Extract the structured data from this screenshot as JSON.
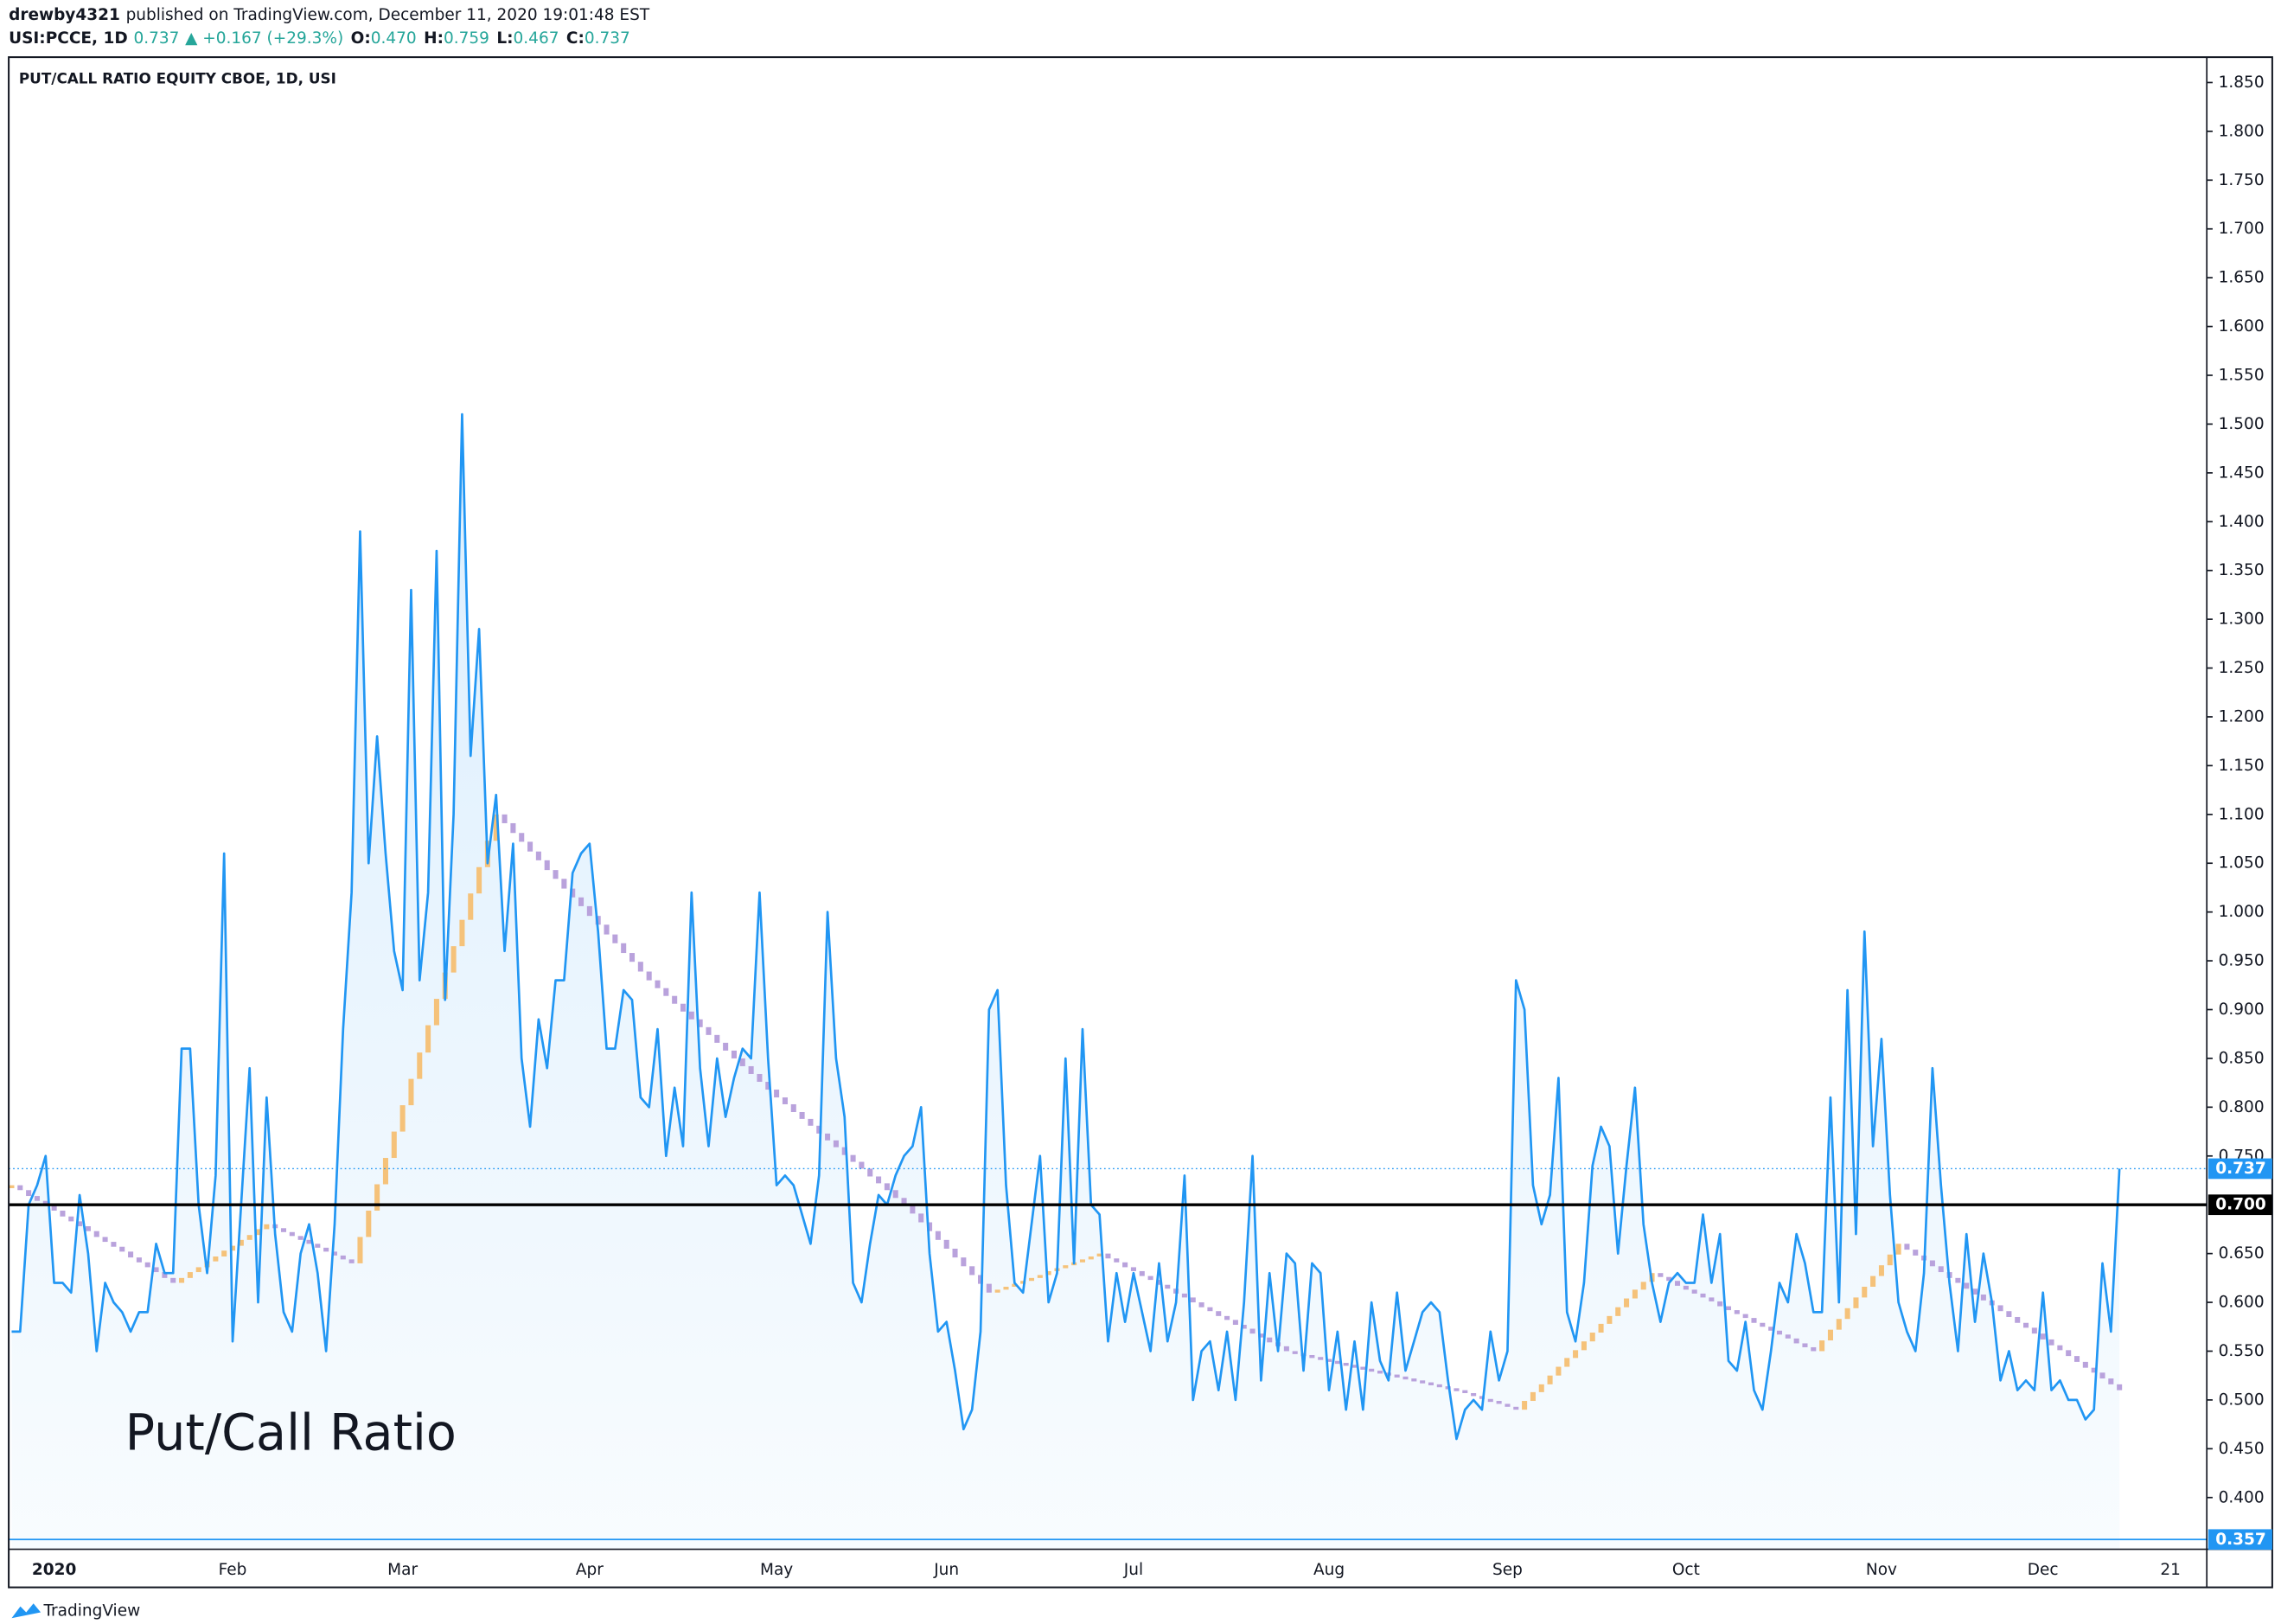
{
  "header": {
    "user": "drewby4321",
    "published": "published on TradingView.com, December 11, 2020 19:01:48 EST",
    "symbol": "USI:PCCE, 1D",
    "last": "0.737",
    "change": "▲ +0.167 (+29.3%)",
    "ohlc": [
      {
        "key": "O:",
        "value": "0.470"
      },
      {
        "key": "H:",
        "value": "0.759"
      },
      {
        "key": "L:",
        "value": "0.467"
      },
      {
        "key": "C:",
        "value": "0.737"
      }
    ]
  },
  "footer": "TradingView",
  "chart_data": {
    "type": "line",
    "title": "PUT/CALL RATIO EQUITY CBOE, 1D, USI",
    "annotation": "Put/Call Ratio",
    "categories": [
      null,
      null,
      null,
      null,
      null,
      "2020",
      null,
      null,
      null,
      null,
      null,
      null,
      null,
      null,
      null,
      null,
      null,
      null,
      null,
      null,
      null,
      null,
      null,
      null,
      null,
      null,
      "Feb",
      null,
      null,
      null,
      null,
      null,
      null,
      null,
      null,
      null,
      null,
      null,
      null,
      null,
      null,
      null,
      null,
      null,
      null,
      null,
      "Mar",
      null,
      null,
      null,
      null,
      null,
      null,
      null,
      null,
      null,
      null,
      null,
      null,
      null,
      null,
      null,
      null,
      null,
      null,
      null,
      null,
      null,
      "Apr",
      null,
      null,
      null,
      null,
      null,
      null,
      null,
      null,
      null,
      null,
      null,
      null,
      null,
      null,
      null,
      null,
      null,
      null,
      null,
      null,
      null,
      "May",
      null,
      null,
      null,
      null,
      null,
      null,
      null,
      null,
      null,
      null,
      null,
      null,
      null,
      null,
      null,
      null,
      null,
      null,
      null,
      "Jun",
      null,
      null,
      null,
      null,
      null,
      null,
      null,
      null,
      null,
      null,
      null,
      null,
      null,
      null,
      null,
      null,
      null,
      null,
      null,
      null,
      null,
      "Jul",
      null,
      null,
      null,
      null,
      null,
      null,
      null,
      null,
      null,
      null,
      null,
      null,
      null,
      null,
      null,
      null,
      null,
      null,
      null,
      null,
      null,
      null,
      "Aug",
      null,
      null,
      null,
      null,
      null,
      null,
      null,
      null,
      null,
      null,
      null,
      null,
      null,
      null,
      null,
      null,
      null,
      null,
      null,
      null,
      "Sep",
      null,
      null,
      null,
      null,
      null,
      null,
      null,
      null,
      null,
      null,
      null,
      null,
      null,
      null,
      null,
      null,
      null,
      null,
      null,
      null,
      "Oct",
      null,
      null,
      null,
      null,
      null,
      null,
      null,
      null,
      null,
      null,
      null,
      null,
      null,
      null,
      null,
      null,
      null,
      null,
      null,
      null,
      null,
      null,
      "Nov",
      null,
      null,
      null,
      null,
      null,
      null,
      null,
      null,
      null,
      null,
      null,
      null,
      null,
      null,
      null,
      null,
      null,
      null,
      "Dec",
      null,
      null,
      null,
      null,
      null,
      null,
      null,
      null,
      null,
      null,
      null,
      null,
      null,
      null,
      "21"
    ],
    "series": [
      {
        "color": "#2196f3",
        "fill": true,
        "values": [
          0.57,
          0.57,
          0.7,
          0.72,
          0.75,
          0.62,
          0.62,
          0.61,
          0.71,
          0.65,
          0.55,
          0.62,
          0.6,
          0.59,
          0.57,
          0.59,
          0.59,
          0.66,
          0.63,
          0.63,
          0.86,
          0.86,
          0.7,
          0.63,
          0.73,
          1.06,
          0.56,
          0.7,
          0.84,
          0.6,
          0.81,
          0.67,
          0.59,
          0.57,
          0.65,
          0.68,
          0.63,
          0.55,
          0.68,
          0.88,
          1.02,
          1.39,
          1.05,
          1.18,
          1.06,
          0.96,
          0.92,
          1.33,
          0.93,
          1.02,
          1.37,
          0.91,
          1.1,
          1.51,
          1.16,
          1.29,
          1.05,
          1.12,
          0.96,
          1.07,
          0.85,
          0.78,
          0.89,
          0.84,
          0.93,
          0.93,
          1.04,
          1.06,
          1.07,
          0.98,
          0.86,
          0.86,
          0.92,
          0.91,
          0.81,
          0.8,
          0.88,
          0.75,
          0.82,
          0.76,
          1.02,
          0.84,
          0.76,
          0.85,
          0.79,
          0.83,
          0.86,
          0.85,
          1.02,
          0.85,
          0.72,
          0.73,
          0.72,
          0.69,
          0.66,
          0.73,
          1.0,
          0.85,
          0.79,
          0.62,
          0.6,
          0.66,
          0.71,
          0.7,
          0.73,
          0.75,
          0.76,
          0.8,
          0.65,
          0.57,
          0.58,
          0.53,
          0.47,
          0.49,
          0.57,
          0.9,
          0.92,
          0.72,
          0.62,
          0.61,
          0.68,
          0.75,
          0.6,
          0.63,
          0.85,
          0.64,
          0.88,
          0.7,
          0.69,
          0.56,
          0.63,
          0.58,
          0.63,
          0.59,
          0.55,
          0.64,
          0.56,
          0.6,
          0.73,
          0.5,
          0.55,
          0.56,
          0.51,
          0.57,
          0.5,
          0.6,
          0.75,
          0.52,
          0.63,
          0.55,
          0.65,
          0.64,
          0.53,
          0.64,
          0.63,
          0.51,
          0.57,
          0.49,
          0.56,
          0.49,
          0.6,
          0.54,
          0.52,
          0.61,
          0.53,
          0.56,
          0.59,
          0.6,
          0.59,
          0.52,
          0.46,
          0.49,
          0.5,
          0.49,
          0.57,
          0.52,
          0.55,
          0.93,
          0.9,
          0.72,
          0.68,
          0.71,
          0.83,
          0.59,
          0.56,
          0.62,
          0.74,
          0.78,
          0.76,
          0.65,
          0.74,
          0.82,
          0.68,
          0.62,
          0.58,
          0.62,
          0.63,
          0.62,
          0.62,
          0.69,
          0.62,
          0.67,
          0.54,
          0.53,
          0.58,
          0.51,
          0.49,
          0.55,
          0.62,
          0.6,
          0.67,
          0.64,
          0.59,
          0.59,
          0.81,
          0.6,
          0.92,
          0.67,
          0.98,
          0.76,
          0.87,
          0.71,
          0.6,
          0.57,
          0.55,
          0.63,
          0.84,
          0.72,
          0.62,
          0.55,
          0.67,
          0.58,
          0.65,
          0.6,
          0.52,
          0.55,
          0.51,
          0.52,
          0.51,
          0.61,
          0.51,
          0.52,
          0.5,
          0.5,
          0.48,
          0.49,
          0.64,
          0.57,
          0.737,
          null,
          null,
          null,
          null,
          null,
          null
        ]
      },
      {
        "style": "steps",
        "up_color": "#f5c27a",
        "down_color": "#b9a2dc",
        "values": [
          0.72,
          0.715,
          0.709,
          0.704,
          0.699,
          0.694,
          0.688,
          0.683,
          0.678,
          0.673,
          0.667,
          0.662,
          0.657,
          0.652,
          0.646,
          0.641,
          0.636,
          0.631,
          0.625,
          0.62,
          0.625,
          0.631,
          0.636,
          0.642,
          0.647,
          0.653,
          0.658,
          0.664,
          0.669,
          0.675,
          0.68,
          0.676,
          0.672,
          0.668,
          0.664,
          0.66,
          0.656,
          0.652,
          0.648,
          0.644,
          0.64,
          0.667,
          0.694,
          0.721,
          0.748,
          0.775,
          0.802,
          0.829,
          0.856,
          0.884,
          0.911,
          0.938,
          0.965,
          0.992,
          1.019,
          1.046,
          1.073,
          1.1,
          1.091,
          1.081,
          1.072,
          1.062,
          1.053,
          1.043,
          1.034,
          1.024,
          1.015,
          1.006,
          0.996,
          0.987,
          0.977,
          0.968,
          0.958,
          0.949,
          0.939,
          0.93,
          0.922,
          0.914,
          0.906,
          0.898,
          0.89,
          0.882,
          0.874,
          0.866,
          0.858,
          0.85,
          0.842,
          0.834,
          0.826,
          0.818,
          0.81,
          0.803,
          0.795,
          0.788,
          0.781,
          0.773,
          0.766,
          0.759,
          0.751,
          0.744,
          0.737,
          0.729,
          0.722,
          0.715,
          0.707,
          0.7,
          0.691,
          0.682,
          0.673,
          0.664,
          0.655,
          0.646,
          0.637,
          0.628,
          0.619,
          0.61,
          0.613,
          0.616,
          0.619,
          0.622,
          0.625,
          0.628,
          0.632,
          0.635,
          0.638,
          0.641,
          0.644,
          0.647,
          0.65,
          0.645,
          0.641,
          0.636,
          0.632,
          0.627,
          0.623,
          0.618,
          0.614,
          0.609,
          0.605,
          0.6,
          0.595,
          0.591,
          0.586,
          0.582,
          0.577,
          0.573,
          0.568,
          0.564,
          0.559,
          0.555,
          0.55,
          0.548,
          0.546,
          0.544,
          0.542,
          0.54,
          0.538,
          0.536,
          0.534,
          0.532,
          0.53,
          0.528,
          0.526,
          0.524,
          0.522,
          0.52,
          0.518,
          0.516,
          0.514,
          0.512,
          0.51,
          0.507,
          0.504,
          0.501,
          0.499,
          0.496,
          0.493,
          0.49,
          0.499,
          0.508,
          0.516,
          0.525,
          0.534,
          0.543,
          0.551,
          0.56,
          0.569,
          0.578,
          0.586,
          0.595,
          0.604,
          0.613,
          0.621,
          0.63,
          0.626,
          0.622,
          0.617,
          0.613,
          0.609,
          0.605,
          0.601,
          0.596,
          0.592,
          0.588,
          0.584,
          0.579,
          0.575,
          0.571,
          0.567,
          0.563,
          0.558,
          0.554,
          0.55,
          0.561,
          0.572,
          0.583,
          0.594,
          0.605,
          0.616,
          0.627,
          0.638,
          0.649,
          0.66,
          0.654,
          0.648,
          0.643,
          0.637,
          0.631,
          0.625,
          0.62,
          0.614,
          0.608,
          0.602,
          0.597,
          0.591,
          0.585,
          0.579,
          0.574,
          0.568,
          0.562,
          0.556,
          0.551,
          0.545,
          0.539,
          0.533,
          0.528,
          0.522,
          0.516,
          0.51,
          null,
          null,
          null,
          null,
          null,
          null
        ]
      }
    ],
    "hlines": [
      {
        "value": 0.7,
        "label": "0.700",
        "color": "#000000",
        "width": 2,
        "dashed": false
      },
      {
        "value": 0.737,
        "label": "0.737",
        "color": "#2196f3",
        "width": 0.8,
        "dashed": true
      },
      {
        "value": 0.357,
        "label": "0.357",
        "color": "#2196f3",
        "width": 1,
        "dashed": false
      }
    ],
    "ylim": [
      0.347,
      1.876
    ],
    "yticks": [
      {
        "value": 0.4,
        "label": "0.400"
      },
      {
        "value": 0.45,
        "label": "0.450"
      },
      {
        "value": 0.5,
        "label": "0.500"
      },
      {
        "value": 0.55,
        "label": "0.550"
      },
      {
        "value": 0.6,
        "label": "0.600"
      },
      {
        "value": 0.65,
        "label": "0.650"
      },
      {
        "value": 0.75,
        "label": "0.750"
      },
      {
        "value": 0.8,
        "label": "0.800"
      },
      {
        "value": 0.85,
        "label": "0.850"
      },
      {
        "value": 0.9,
        "label": "0.900"
      },
      {
        "value": 0.95,
        "label": "0.950"
      },
      {
        "value": 1.0,
        "label": "1.000"
      },
      {
        "value": 1.05,
        "label": "1.050"
      },
      {
        "value": 1.1,
        "label": "1.100"
      },
      {
        "value": 1.15,
        "label": "1.150"
      },
      {
        "value": 1.2,
        "label": "1.200"
      },
      {
        "value": 1.25,
        "label": "1.250"
      },
      {
        "value": 1.3,
        "label": "1.300"
      },
      {
        "value": 1.35,
        "label": "1.350"
      },
      {
        "value": 1.4,
        "label": "1.400"
      },
      {
        "value": 1.45,
        "label": "1.450"
      },
      {
        "value": 1.5,
        "label": "1.500"
      },
      {
        "value": 1.55,
        "label": "1.550"
      },
      {
        "value": 1.6,
        "label": "1.600"
      },
      {
        "value": 1.65,
        "label": "1.650"
      },
      {
        "value": 1.7,
        "label": "1.700"
      },
      {
        "value": 1.75,
        "label": "1.750"
      },
      {
        "value": 1.8,
        "label": "1.800"
      },
      {
        "value": 1.85,
        "label": "1.850"
      }
    ],
    "grid": false
  }
}
